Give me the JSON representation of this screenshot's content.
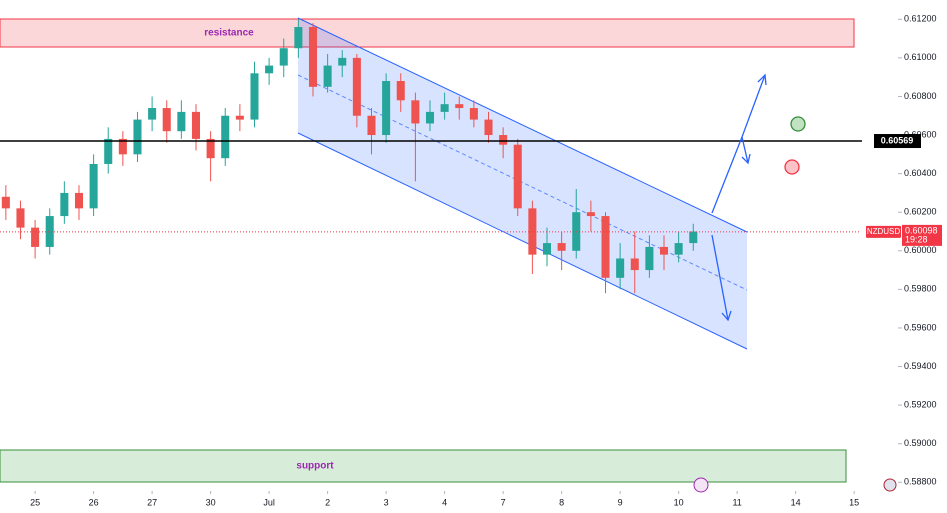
{
  "chart_data": {
    "type": "candlestick",
    "symbol": "NZDUSD",
    "countdown": "19:28",
    "last_price": {
      "value": 0.60098,
      "label": "0.60098"
    },
    "hline": {
      "value": 0.60569,
      "label": "0.60569"
    },
    "annotations": [
      "resistance",
      "support"
    ],
    "up_color": "#26a69a",
    "down_color": "#ef5350",
    "grid": false,
    "xlim": [
      -0.6,
      14.1
    ],
    "xticks": [
      {
        "value": 0,
        "label": "25"
      },
      {
        "value": 1,
        "label": "26"
      },
      {
        "value": 2,
        "label": "27"
      },
      {
        "value": 3,
        "label": "30"
      },
      {
        "value": 4,
        "label": "Jul"
      },
      {
        "value": 5,
        "label": "2"
      },
      {
        "value": 6,
        "label": "3"
      },
      {
        "value": 7,
        "label": "4"
      },
      {
        "value": 8,
        "label": "7"
      },
      {
        "value": 9,
        "label": "8"
      },
      {
        "value": 10,
        "label": "9"
      },
      {
        "value": 11,
        "label": "10"
      },
      {
        "value": 12,
        "label": "11"
      },
      {
        "value": 13,
        "label": "14"
      },
      {
        "value": 14,
        "label": "15"
      }
    ],
    "ylim": [
      0.5876,
      0.613
    ],
    "yticks": [
      {
        "value": 0.612,
        "label": "0.61200"
      },
      {
        "value": 0.61,
        "label": "0.61000"
      },
      {
        "value": 0.608,
        "label": "0.60800"
      },
      {
        "value": 0.606,
        "label": "0.60600"
      },
      {
        "value": 0.604,
        "label": "0.60400"
      },
      {
        "value": 0.602,
        "label": "0.60200"
      },
      {
        "value": 0.6,
        "label": "0.60000"
      },
      {
        "value": 0.598,
        "label": "0.59800"
      },
      {
        "value": 0.596,
        "label": "0.59600"
      },
      {
        "value": 0.594,
        "label": "0.59400"
      },
      {
        "value": 0.592,
        "label": "0.59200"
      },
      {
        "value": 0.59,
        "label": "0.59000"
      },
      {
        "value": 0.588,
        "label": "0.58800"
      }
    ],
    "x": [
      -0.5,
      -0.25,
      0,
      0.25,
      0.5,
      0.75,
      1,
      1.25,
      1.5,
      1.75,
      2,
      2.25,
      2.5,
      2.75,
      3,
      3.25,
      3.5,
      3.75,
      4,
      4.25,
      4.5,
      4.75,
      5,
      5.25,
      5.5,
      5.75,
      6,
      6.25,
      6.5,
      6.75,
      7,
      7.25,
      7.5,
      7.75,
      8,
      8.25,
      8.5,
      8.75,
      9,
      9.25,
      9.5,
      9.75,
      10,
      10.25,
      10.5,
      10.75,
      11,
      11.25
    ],
    "open": [
      0.6028,
      0.6022,
      0.6012,
      0.6002,
      0.6018,
      0.603,
      0.6022,
      0.6045,
      0.6058,
      0.605,
      0.6068,
      0.6074,
      0.6062,
      0.6072,
      0.6058,
      0.6048,
      0.607,
      0.6068,
      0.6092,
      0.6096,
      0.6105,
      0.6116,
      0.6085,
      0.6096,
      0.61,
      0.607,
      0.606,
      0.6088,
      0.6078,
      0.6066,
      0.6072,
      0.6076,
      0.6074,
      0.6068,
      0.606,
      0.6055,
      0.6022,
      0.5998,
      0.6004,
      0.6,
      0.602,
      0.6018,
      0.5986,
      0.5996,
      0.599,
      0.6002,
      0.5998,
      0.6004
    ],
    "high": [
      0.6034,
      0.6026,
      0.6016,
      0.6022,
      0.6036,
      0.6034,
      0.605,
      0.6064,
      0.6062,
      0.6072,
      0.608,
      0.6078,
      0.6078,
      0.6076,
      0.6062,
      0.6074,
      0.6076,
      0.6098,
      0.61,
      0.611,
      0.612,
      0.6118,
      0.6102,
      0.6104,
      0.6102,
      0.6074,
      0.6092,
      0.6092,
      0.6082,
      0.6078,
      0.6082,
      0.608,
      0.6078,
      0.6072,
      0.6064,
      0.6058,
      0.6026,
      0.6012,
      0.601,
      0.6032,
      0.6026,
      0.602,
      0.6004,
      0.601,
      0.6008,
      0.6008,
      0.601,
      0.6014
    ],
    "low": [
      0.6016,
      0.6006,
      0.5996,
      0.5998,
      0.6014,
      0.6016,
      0.6018,
      0.604,
      0.6044,
      0.6046,
      0.6062,
      0.6056,
      0.6058,
      0.6052,
      0.6036,
      0.6044,
      0.6062,
      0.6064,
      0.6086,
      0.609,
      0.61,
      0.608,
      0.6082,
      0.609,
      0.6064,
      0.605,
      0.6056,
      0.6072,
      0.6036,
      0.6062,
      0.6068,
      0.6068,
      0.6064,
      0.6056,
      0.6048,
      0.6018,
      0.5988,
      0.5992,
      0.599,
      0.5996,
      0.601,
      0.5978,
      0.598,
      0.5978,
      0.5986,
      0.599,
      0.5994,
      0.6
    ],
    "close": [
      0.6022,
      0.6012,
      0.6002,
      0.6018,
      0.603,
      0.6022,
      0.6045,
      0.6058,
      0.605,
      0.6068,
      0.6074,
      0.6062,
      0.6072,
      0.6058,
      0.6048,
      0.607,
      0.6068,
      0.6092,
      0.6096,
      0.6105,
      0.6116,
      0.6085,
      0.6096,
      0.61,
      0.607,
      0.606,
      0.6088,
      0.6078,
      0.6066,
      0.6072,
      0.6076,
      0.6074,
      0.6068,
      0.606,
      0.6055,
      0.6022,
      0.5998,
      0.6004,
      0.6,
      0.602,
      0.6018,
      0.5986,
      0.5996,
      0.599,
      0.6002,
      0.5998,
      0.6004,
      0.601
    ]
  }
}
